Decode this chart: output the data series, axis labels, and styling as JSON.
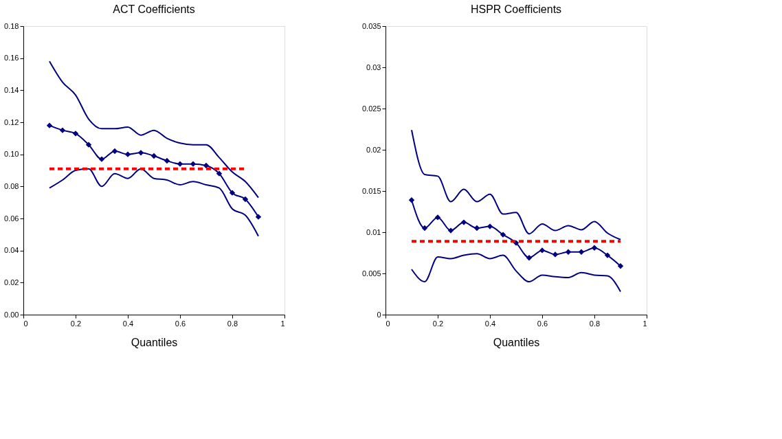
{
  "chart_data": [
    {
      "type": "line",
      "title": "ACT Coefficients",
      "xlabel": "Quantiles",
      "x": [
        0.1,
        0.15,
        0.2,
        0.25,
        0.3,
        0.35,
        0.4,
        0.45,
        0.5,
        0.55,
        0.6,
        0.65,
        0.7,
        0.75,
        0.8,
        0.85,
        0.9
      ],
      "xlim": [
        0,
        1
      ],
      "xticks": [
        0,
        0.2,
        0.4,
        0.6,
        0.8,
        1
      ],
      "legend": false,
      "ylim": [
        0,
        0.18
      ],
      "yticks": [
        {
          "value": 0,
          "label": "0.00"
        },
        {
          "value": 0.02,
          "label": "0.02"
        },
        {
          "value": 0.04,
          "label": "0.04"
        },
        {
          "value": 0.06,
          "label": "0.06"
        },
        {
          "value": 0.08,
          "label": "0.08"
        },
        {
          "value": 0.1,
          "label": "0.10"
        },
        {
          "value": 0.12,
          "label": "0.12"
        },
        {
          "value": 0.14,
          "label": "0.14"
        },
        {
          "value": 0.16,
          "label": "0.16"
        },
        {
          "value": 0.18,
          "label": "0.18"
        }
      ],
      "grid": false,
      "series": [
        {
          "color": "#000080",
          "marker": "none",
          "line_style": "solid",
          "values": [
            0.158,
            0.145,
            0.137,
            0.122,
            0.116,
            0.116,
            0.117,
            0.112,
            0.115,
            0.11,
            0.107,
            0.106,
            0.106,
            0.098,
            0.089,
            0.083,
            0.073
          ]
        },
        {
          "color": "#000080",
          "marker": "diamond",
          "line_style": "solid",
          "values": [
            0.118,
            0.115,
            0.113,
            0.106,
            0.097,
            0.102,
            0.1,
            0.101,
            0.099,
            0.096,
            0.094,
            0.094,
            0.093,
            0.088,
            0.076,
            0.072,
            0.061
          ]
        },
        {
          "color": "#000080",
          "marker": "none",
          "line_style": "solid",
          "values": [
            0.079,
            0.084,
            0.09,
            0.091,
            0.08,
            0.088,
            0.085,
            0.091,
            0.085,
            0.084,
            0.081,
            0.083,
            0.081,
            0.079,
            0.066,
            0.062,
            0.049
          ]
        },
        {
          "color": "#ff0000",
          "marker": "none",
          "line_style": "dashed",
          "x": [
            0.1,
            0.85
          ],
          "values": [
            0.091,
            0.091
          ]
        }
      ]
    },
    {
      "type": "line",
      "title": "HSPR Coefficients",
      "xlabel": "Quantiles",
      "x": [
        0.1,
        0.15,
        0.2,
        0.25,
        0.3,
        0.35,
        0.4,
        0.45,
        0.5,
        0.55,
        0.6,
        0.65,
        0.7,
        0.75,
        0.8,
        0.85,
        0.9
      ],
      "xlim": [
        0,
        1
      ],
      "xticks": [
        0,
        0.2,
        0.4,
        0.6,
        0.8,
        1
      ],
      "legend": false,
      "ylim": [
        0,
        0.035
      ],
      "yticks": [
        0,
        0.005,
        0.01,
        0.015,
        0.02,
        0.025,
        0.03,
        0.035
      ],
      "grid": false,
      "series": [
        {
          "color": "#000080",
          "marker": "none",
          "line_style": "solid",
          "values": [
            0.0224,
            0.017,
            0.0168,
            0.0137,
            0.0152,
            0.0137,
            0.0146,
            0.0122,
            0.0124,
            0.0098,
            0.011,
            0.0102,
            0.0108,
            0.0103,
            0.0113,
            0.0099,
            0.0091
          ]
        },
        {
          "color": "#000080",
          "marker": "diamond",
          "line_style": "solid",
          "values": [
            0.0139,
            0.0105,
            0.0118,
            0.0102,
            0.0112,
            0.0105,
            0.0107,
            0.0097,
            0.0087,
            0.0069,
            0.0078,
            0.0073,
            0.0076,
            0.0076,
            0.0081,
            0.0072,
            0.0059
          ]
        },
        {
          "color": "#000080",
          "marker": "none",
          "line_style": "solid",
          "values": [
            0.0055,
            0.004,
            0.007,
            0.0068,
            0.0072,
            0.0074,
            0.0068,
            0.0072,
            0.0053,
            0.004,
            0.0048,
            0.0046,
            0.0045,
            0.0051,
            0.0048,
            0.0047,
            0.0028
          ]
        },
        {
          "color": "#ff0000",
          "marker": "none",
          "line_style": "dashed",
          "x": [
            0.1,
            0.9
          ],
          "values": [
            0.0089,
            0.0089
          ]
        }
      ]
    }
  ]
}
